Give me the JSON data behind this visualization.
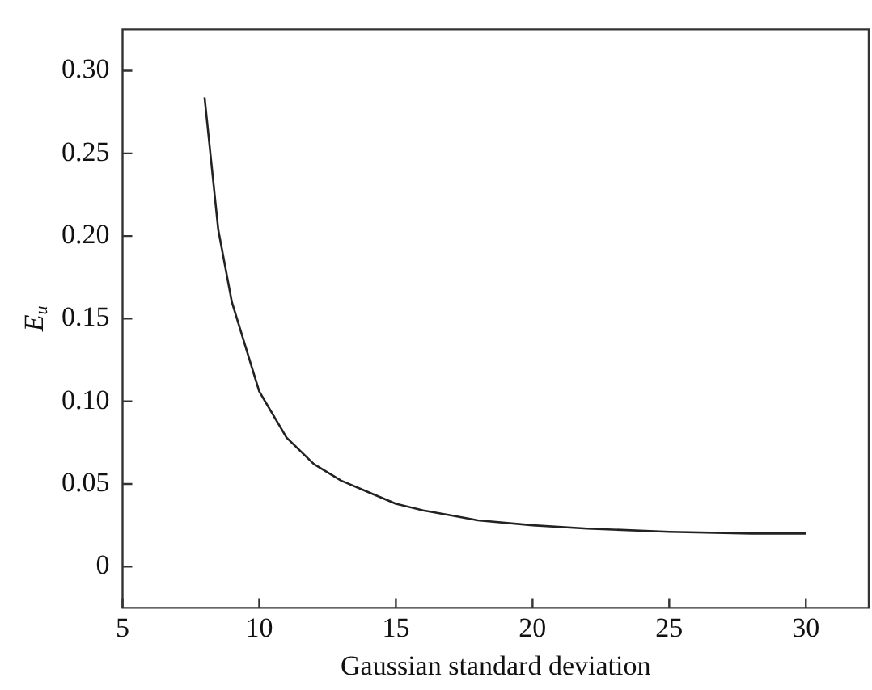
{
  "chart_data": {
    "type": "line",
    "xlabel": "Gaussian standard deviation",
    "ylabel": "E$_{u}$",
    "x": [
      8,
      8.5,
      9,
      10,
      11,
      12,
      13,
      14,
      15,
      16,
      17,
      18,
      20,
      22,
      25,
      28,
      30
    ],
    "series": [
      {
        "color": "#222222",
        "values": [
          0.284,
          0.204,
          0.16,
          0.106,
          0.078,
          0.062,
          0.052,
          0.045,
          0.038,
          0.034,
          0.031,
          0.028,
          0.025,
          0.023,
          0.021,
          0.02,
          0.02
        ]
      }
    ],
    "xlim": [
      5,
      32.3
    ],
    "xticks": [
      5,
      10,
      15,
      20,
      25,
      30
    ],
    "ylim": [
      -0.025,
      0.325
    ],
    "yticks": [
      0,
      0.05,
      {
        "value": 0.1,
        "label": "0.10"
      },
      0.15,
      {
        "value": 0.2,
        "label": "0.20"
      },
      0.25,
      {
        "value": 0.3,
        "label": "0.30"
      }
    ],
    "grid": false,
    "legend": false,
    "marker": "none",
    "line_style": "solid"
  }
}
